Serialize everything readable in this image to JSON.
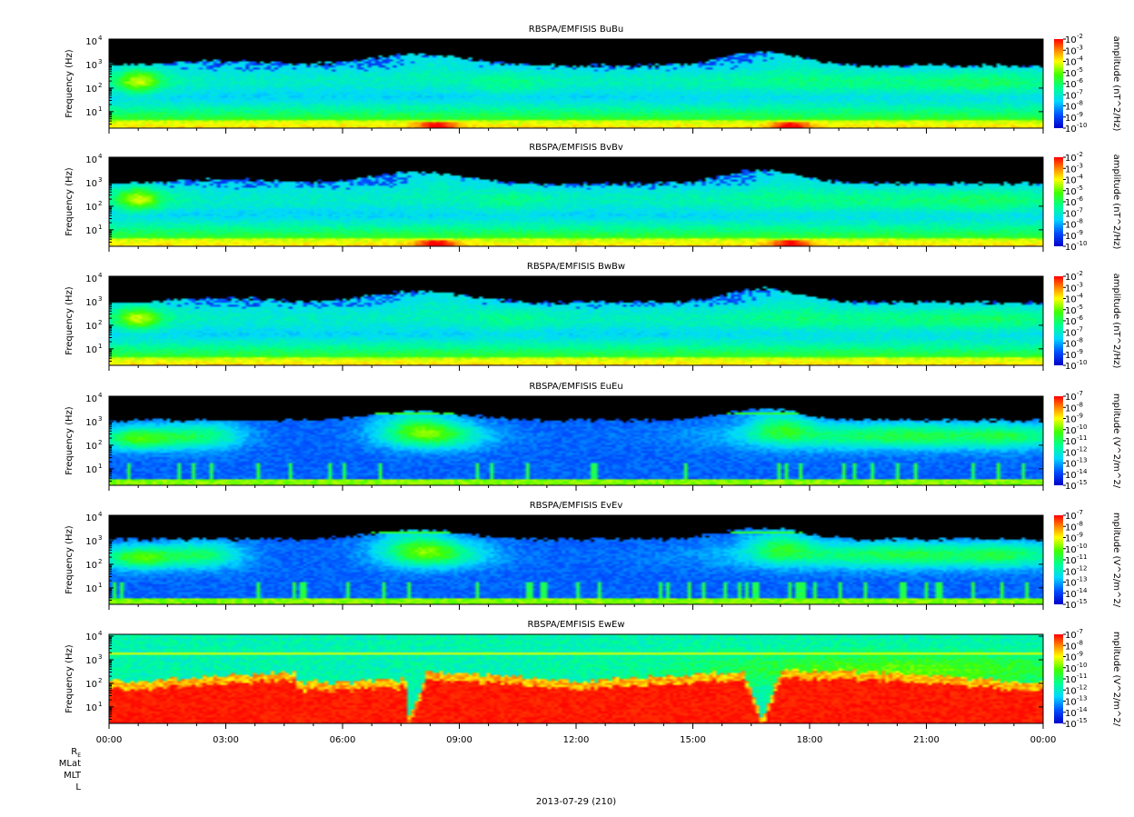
{
  "chart_data": {
    "type": "heatmap",
    "x_tick_labels": [
      "00:00",
      "03:00",
      "06:00",
      "09:00",
      "12:00",
      "15:00",
      "18:00",
      "21:00",
      "00:00"
    ],
    "x_range": [
      "2013-07-29 00:00",
      "2013-07-30 00:00"
    ],
    "x_minor_ticks_per_major": 3,
    "ephemeris_labels": [
      "R_E",
      "MLat",
      "MLT",
      "L"
    ],
    "footer": "2013-07-29 (210)",
    "yscale": "log",
    "y_tick_labels": [
      {
        "base": "10",
        "exp": "4",
        "value": 10000
      },
      {
        "base": "10",
        "exp": "3",
        "value": 1000
      },
      {
        "base": "10",
        "exp": "2",
        "value": 100
      },
      {
        "base": "10",
        "exp": "1",
        "value": 10
      }
    ],
    "ylim": [
      2,
      12000
    ],
    "colorscale": "rainbow (blue → cyan → green → yellow → red), black = no data",
    "panels": [
      {
        "title": "RBSPA/EMFISIS  BuBu",
        "ylabel": "Frequency (Hz)",
        "colorbar_label": "amplitude (nT^2/Hz)",
        "colorbar_ticks": [
          "-2",
          "-3",
          "-4",
          "-5",
          "-6",
          "-7",
          "-8",
          "-9",
          "-10"
        ],
        "colorbar_range": [
          1e-10,
          0.01
        ],
        "kind": "B"
      },
      {
        "title": "RBSPA/EMFISIS  BvBv",
        "ylabel": "Frequency (Hz)",
        "colorbar_label": "amplitude (nT^2/Hz)",
        "colorbar_ticks": [
          "-2",
          "-3",
          "-4",
          "-5",
          "-6",
          "-7",
          "-8",
          "-9",
          "-10"
        ],
        "colorbar_range": [
          1e-10,
          0.01
        ],
        "kind": "B"
      },
      {
        "title": "RBSPA/EMFISIS  BwBw",
        "ylabel": "Frequency (Hz)",
        "colorbar_label": "amplitude (nT^2/Hz)",
        "colorbar_ticks": [
          "-2",
          "-3",
          "-4",
          "-5",
          "-6",
          "-7",
          "-8",
          "-9",
          "-10"
        ],
        "colorbar_range": [
          1e-10,
          0.01
        ],
        "kind": "Bw"
      },
      {
        "title": "RBSPA/EMFISIS  EuEu",
        "ylabel": "Frequency (Hz)",
        "colorbar_label": "mplitude (V^2/m^2/",
        "colorbar_ticks": [
          "-7",
          "-8",
          "-9",
          "-10",
          "-11",
          "-12",
          "-13",
          "-14",
          "-15"
        ],
        "colorbar_range": [
          1e-15,
          1e-07
        ],
        "kind": "E"
      },
      {
        "title": "RBSPA/EMFISIS  EvEv",
        "ylabel": "Frequency (Hz)",
        "colorbar_label": "mplitude (V^2/m^2/",
        "colorbar_ticks": [
          "-7",
          "-8",
          "-9",
          "-10",
          "-11",
          "-12",
          "-13",
          "-14",
          "-15"
        ],
        "colorbar_range": [
          1e-15,
          1e-07
        ],
        "kind": "E"
      },
      {
        "title": "RBSPA/EMFISIS  EwEw",
        "ylabel": "Frequency (Hz)",
        "colorbar_label": "mplitude (V^2/m^2/",
        "colorbar_ticks": [
          "-7",
          "-8",
          "-9",
          "-10",
          "-11",
          "-12",
          "-13",
          "-14",
          "-15"
        ],
        "colorbar_range": [
          1e-15,
          1e-07
        ],
        "kind": "Ew"
      }
    ]
  }
}
